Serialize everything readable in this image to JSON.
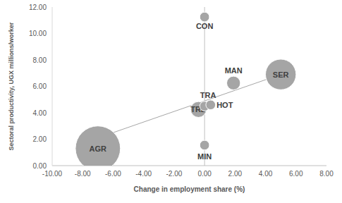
{
  "chart_data": {
    "type": "bubble",
    "x_label": "Change in employment share (%)",
    "y_label": "Sectoral productivity, UGX millions/worker",
    "labels": [
      "AGR",
      "MIN",
      "TRD",
      "TRA",
      "HOT",
      "CON",
      "MAN",
      "SER"
    ],
    "x": [
      -7.0,
      0.0,
      -0.4,
      0.0,
      0.4,
      0.0,
      1.9,
      5.0
    ],
    "values": [
      1.3,
      1.55,
      4.25,
      4.5,
      4.6,
      11.25,
      6.25,
      6.9
    ],
    "size": [
      65,
      3,
      8,
      3,
      3,
      3,
      6,
      30
    ],
    "color": "#a5a5a5",
    "trend_line": {
      "x": [
        -7.0,
        5.0
      ],
      "y": [
        2.1,
        6.9
      ],
      "color": "#a6a6a6"
    },
    "xlim": [
      -10,
      8
    ],
    "ylim": [
      0,
      12
    ],
    "xticks": [
      {
        "value": -10,
        "label": "-10.00"
      },
      {
        "value": -8,
        "label": "-8.00"
      },
      {
        "value": -6,
        "label": "-6.00"
      },
      {
        "value": -4,
        "label": "-4.00"
      },
      {
        "value": -2,
        "label": "-2.00"
      },
      {
        "value": 0,
        "label": "0.00"
      },
      {
        "value": 2,
        "label": "2.00"
      },
      {
        "value": 4,
        "label": "4.00"
      },
      {
        "value": 6,
        "label": "6.00"
      },
      {
        "value": 8,
        "label": "8.00"
      }
    ],
    "yticks": [
      {
        "value": 0,
        "label": "0.00"
      },
      {
        "value": 2,
        "label": "2.00"
      },
      {
        "value": 4,
        "label": "4.00"
      },
      {
        "value": 6,
        "label": "6.00"
      },
      {
        "value": 8,
        "label": "8.00"
      },
      {
        "value": 10,
        "label": "10.00"
      },
      {
        "value": 12,
        "label": "12.00"
      }
    ],
    "grid": false
  }
}
